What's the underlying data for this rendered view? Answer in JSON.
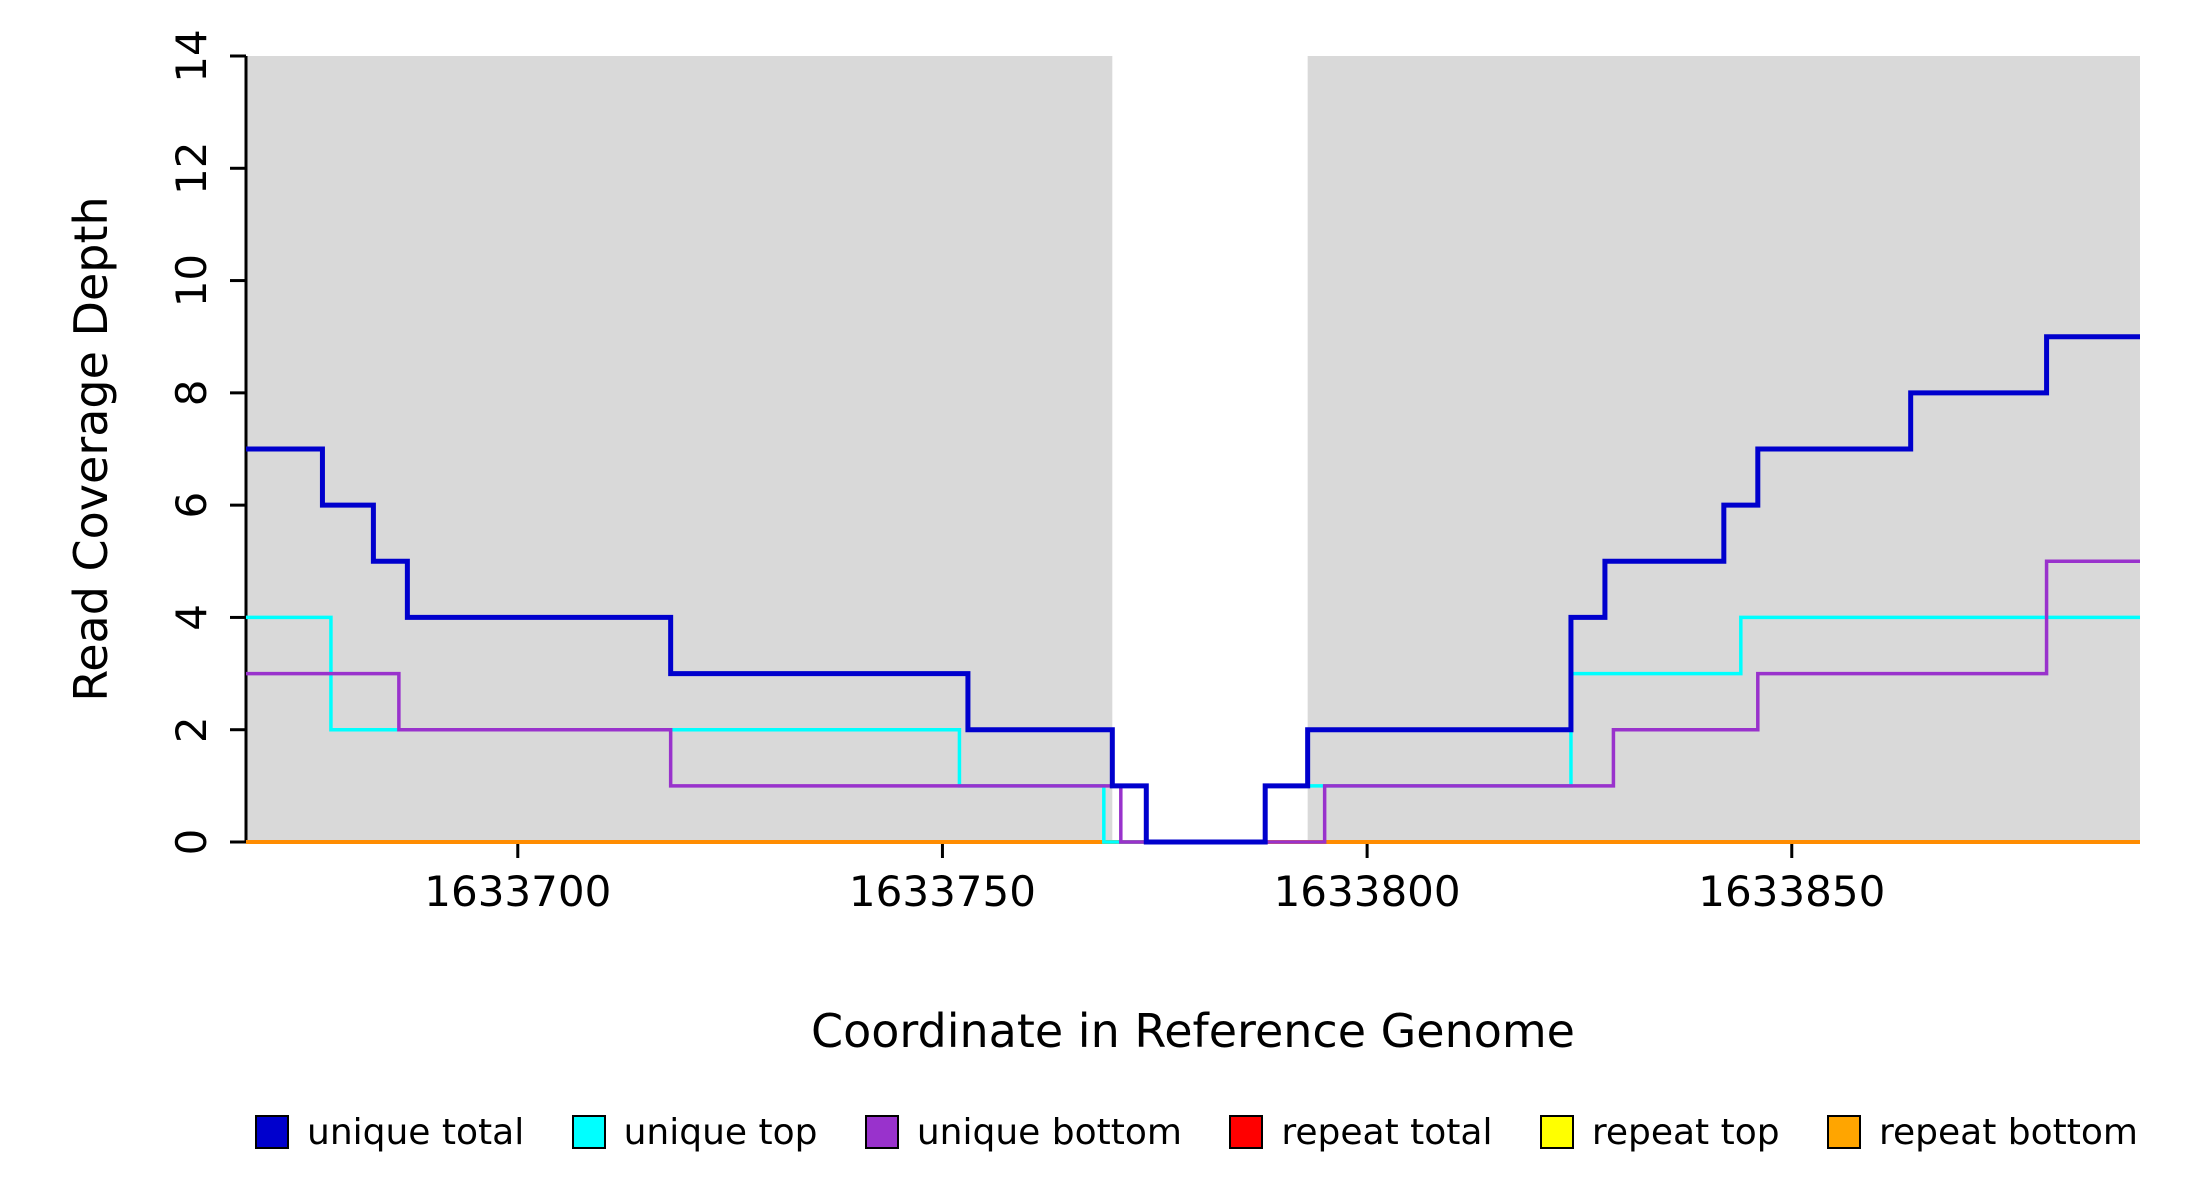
{
  "chart_data": {
    "type": "line",
    "subtype": "step-coverage-plot",
    "title": "",
    "xlabel": "Coordinate in Reference Genome",
    "ylabel": "Read Coverage Depth",
    "xlim": [
      1633668,
      1633891
    ],
    "ylim": [
      0,
      14
    ],
    "x_ticks": [
      1633700,
      1633750,
      1633800,
      1633850
    ],
    "y_ticks": [
      0,
      2,
      4,
      6,
      8,
      10,
      12,
      14
    ],
    "grid": false,
    "legend_position": "bottom",
    "background_color": "#ffffff",
    "shaded_region_color": "#d9d9d9",
    "shaded_regions": [
      {
        "x0": 1633668,
        "x1": 1633770
      },
      {
        "x0": 1633793,
        "x1": 1633891
      }
    ],
    "series": [
      {
        "name": "repeat total",
        "color": "#ff0000",
        "width": 3.5,
        "points": [
          [
            1633668,
            0
          ],
          [
            1633891,
            0
          ]
        ]
      },
      {
        "name": "repeat top",
        "color": "#ffff00",
        "width": 3.5,
        "points": [
          [
            1633668,
            0
          ],
          [
            1633891,
            0
          ]
        ]
      },
      {
        "name": "repeat bottom",
        "color": "#ff8c00",
        "width": 4,
        "points": [
          [
            1633668,
            0
          ],
          [
            1633891,
            0
          ]
        ]
      },
      {
        "name": "unique top",
        "color": "#00ffff",
        "width": 3.5,
        "points": [
          [
            1633668,
            4
          ],
          [
            1633678,
            2
          ],
          [
            1633752,
            1
          ],
          [
            1633769,
            0
          ],
          [
            1633788,
            1
          ],
          [
            1633824,
            3
          ],
          [
            1633844,
            4
          ],
          [
            1633891,
            4
          ]
        ]
      },
      {
        "name": "unique bottom",
        "color": "#9932cc",
        "width": 3.5,
        "points": [
          [
            1633668,
            3
          ],
          [
            1633686,
            2
          ],
          [
            1633718,
            1
          ],
          [
            1633771,
            0
          ],
          [
            1633795,
            1
          ],
          [
            1633829,
            2
          ],
          [
            1633846,
            3
          ],
          [
            1633880,
            5
          ],
          [
            1633891,
            5
          ]
        ]
      },
      {
        "name": "unique total",
        "color": "#0000cd",
        "width": 5,
        "points": [
          [
            1633668,
            7
          ],
          [
            1633677,
            6
          ],
          [
            1633683,
            5
          ],
          [
            1633687,
            4
          ],
          [
            1633718,
            3
          ],
          [
            1633753,
            2
          ],
          [
            1633770,
            1
          ],
          [
            1633774,
            0
          ],
          [
            1633788,
            1
          ],
          [
            1633793,
            2
          ],
          [
            1633824,
            4
          ],
          [
            1633828,
            5
          ],
          [
            1633842,
            6
          ],
          [
            1633846,
            7
          ],
          [
            1633864,
            8
          ],
          [
            1633880,
            9
          ],
          [
            1633891,
            9
          ]
        ]
      }
    ],
    "legend": [
      {
        "label": "unique total",
        "color": "#0000cd"
      },
      {
        "label": "unique top",
        "color": "#00ffff"
      },
      {
        "label": "unique bottom",
        "color": "#9932cc"
      },
      {
        "label": "repeat total",
        "color": "#ff0000"
      },
      {
        "label": "repeat top",
        "color": "#ffff00"
      },
      {
        "label": "repeat bottom",
        "color": "#ffa500"
      }
    ]
  }
}
